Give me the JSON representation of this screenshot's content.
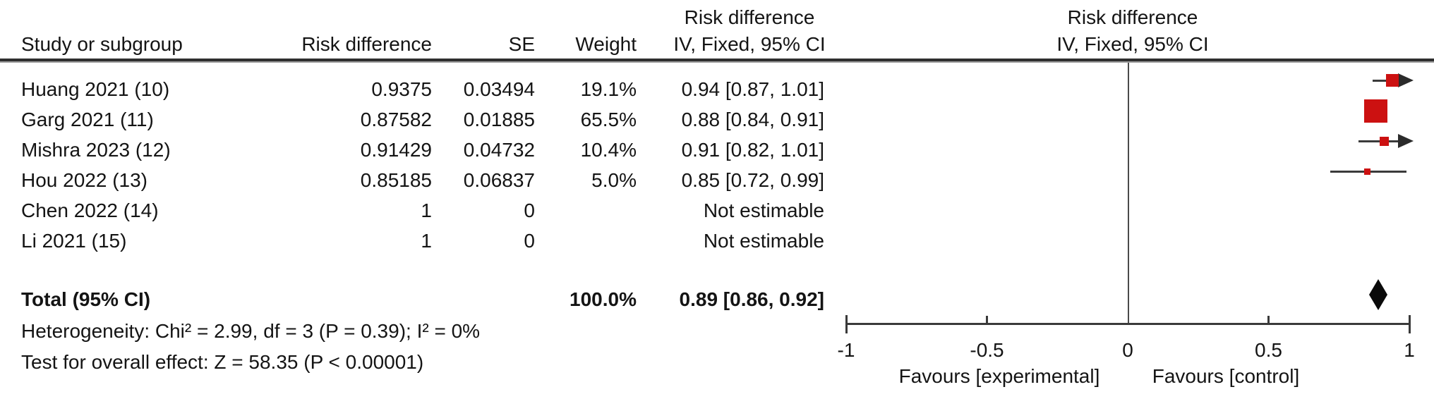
{
  "page": {
    "background": "#FFFFFF"
  },
  "header": {
    "effect_top_label": "Risk difference",
    "plot_top_label": "Risk difference",
    "study": "Study or subgroup",
    "risk_difference": "Risk difference",
    "se": "SE",
    "weight": "Weight",
    "ci": "IV, Fixed, 95% CI",
    "plot_ci": "IV, Fixed, 95% CI"
  },
  "chart_data": {
    "type": "forest",
    "effect_measure": "Risk difference",
    "model": "IV, Fixed, 95% CI",
    "axis": {
      "min": -1,
      "max": 1,
      "ticks": [
        -1,
        -0.5,
        0,
        0.5,
        1
      ],
      "tick_labels": [
        "-1",
        "-0.5",
        "0",
        "0.5",
        "1"
      ],
      "left_label": "Favours [experimental]",
      "right_label": "Favours [control]"
    },
    "studies": [
      {
        "name": "Huang 2021 (10)",
        "risk_difference": "0.9375",
        "se": "0.03494",
        "weight": "19.1%",
        "weight_value": 19.1,
        "estimate": 0.94,
        "ci_low": 0.87,
        "ci_high": 1.01,
        "ci_text": "0.94 [0.87, 1.01]",
        "estimable": true
      },
      {
        "name": "Garg 2021 (11)",
        "risk_difference": "0.87582",
        "se": "0.01885",
        "weight": "65.5%",
        "weight_value": 65.5,
        "estimate": 0.88,
        "ci_low": 0.84,
        "ci_high": 0.91,
        "ci_text": "0.88 [0.84, 0.91]",
        "estimable": true
      },
      {
        "name": "Mishra 2023 (12)",
        "risk_difference": "0.91429",
        "se": "0.04732",
        "weight": "10.4%",
        "weight_value": 10.4,
        "estimate": 0.91,
        "ci_low": 0.82,
        "ci_high": 1.01,
        "ci_text": "0.91 [0.82, 1.01]",
        "estimable": true
      },
      {
        "name": "Hou 2022 (13)",
        "risk_difference": "0.85185",
        "se": "0.06837",
        "weight": "5.0%",
        "weight_value": 5.0,
        "estimate": 0.85,
        "ci_low": 0.72,
        "ci_high": 0.99,
        "ci_text": "0.85 [0.72, 0.99]",
        "estimable": true
      },
      {
        "name": "Chen 2022 (14)",
        "risk_difference": "1",
        "se": "0",
        "weight": "",
        "weight_value": 0,
        "ci_text": "Not estimable",
        "estimable": false
      },
      {
        "name": "Li 2021 (15)",
        "risk_difference": "1",
        "se": "0",
        "weight": "",
        "weight_value": 0,
        "ci_text": "Not estimable",
        "estimable": false
      }
    ],
    "total": {
      "label": "Total (95% CI)",
      "weight": "100.0%",
      "estimate": 0.89,
      "ci_low": 0.86,
      "ci_high": 0.92,
      "ci_text": "0.89 [0.86, 0.92]"
    },
    "heterogeneity": "Heterogeneity: Chi² = 2.99, df = 3 (P = 0.39); I² = 0%",
    "overall_effect": "Test for overall effect: Z = 58.35 (P < 0.00001)"
  },
  "colors": {
    "marker": "#CC1111",
    "diamond": "#0A0A0A",
    "ci_line": "#3A3A3A",
    "axis": "#3A3A3A",
    "text": "#141414"
  }
}
